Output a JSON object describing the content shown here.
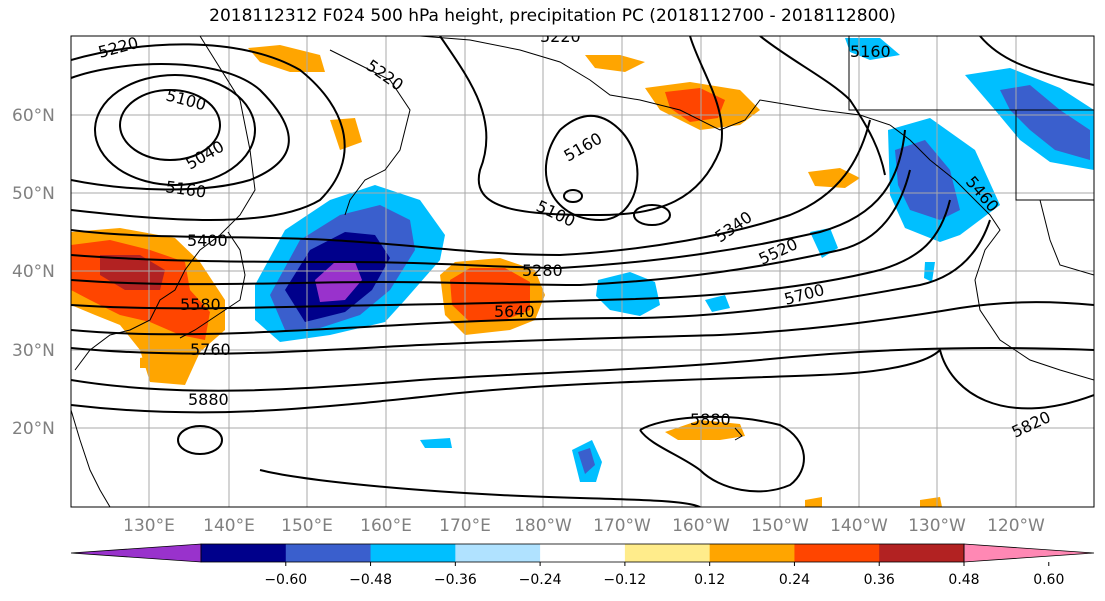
{
  "title": "2018112312 F024 500 hPa height, precipitation PC (2018112700 - 2018112800)",
  "lat_labels": [
    "60°N",
    "50°N",
    "40°N",
    "30°N",
    "20°N"
  ],
  "lon_labels": [
    "130°E",
    "140°E",
    "150°E",
    "160°E",
    "170°E",
    "180°W",
    "170°W",
    "160°W",
    "150°W",
    "140°W",
    "130°W",
    "120°W"
  ],
  "contour_labels": [
    "5220",
    "5220",
    "5100",
    "5040",
    "5160",
    "5400",
    "5580",
    "5760",
    "5880",
    "5160",
    "5100",
    "5220",
    "5160",
    "5280",
    "5640",
    "5340",
    "5520",
    "5700",
    "5460",
    "5880",
    "5820"
  ],
  "colorbar": {
    "ticks": [
      "−0.60",
      "−0.48",
      "−0.36",
      "−0.24",
      "−0.12",
      "0.12",
      "0.24",
      "0.36",
      "0.48",
      "0.60"
    ],
    "colors": [
      "#9932cc",
      "#00008b",
      "#3a5fcd",
      "#00bfff",
      "#b0e2ff",
      "#ffffff",
      "#ffec8b",
      "#ffa500",
      "#ff4500",
      "#b22222",
      "#ff88b4"
    ]
  }
}
